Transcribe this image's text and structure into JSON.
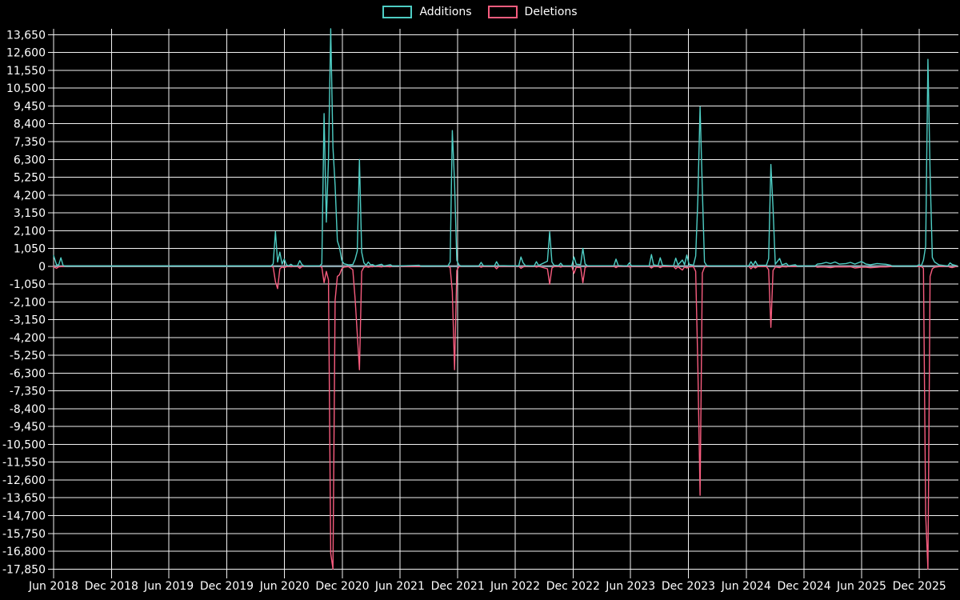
{
  "legend": {
    "items": [
      {
        "label": "Additions",
        "color": "#4ECDC4"
      },
      {
        "label": "Deletions",
        "color": "#F75C7E"
      }
    ]
  },
  "colors": {
    "background": "#000000",
    "gridline": "#F2F2F2",
    "axis_text": "#FFFFFF",
    "zero_baseline": "#8CA6B0",
    "additions": "#4ECDC4",
    "deletions": "#F75C7E"
  },
  "chart_data": {
    "type": "line",
    "title": "",
    "legend_position": "top-center",
    "grid": true,
    "x_domain": [
      "2018-06-01",
      "2026-04-01"
    ],
    "y_domain": [
      -17850,
      14000
    ],
    "y_tick_step": 1050,
    "y_ticks": {
      "values": [
        13650,
        12600,
        11550,
        10500,
        9450,
        8400,
        7350,
        6300,
        5250,
        4200,
        3150,
        2100,
        1050,
        0,
        -1050,
        -2100,
        -3150,
        -4200,
        -5250,
        -6300,
        -7350,
        -8400,
        -9450,
        -10500,
        -11550,
        -12600,
        -13650,
        -14700,
        -15750,
        -16800,
        -17850
      ],
      "labels": [
        "13,650",
        "12,600",
        "11,550",
        "10,500",
        "9,450",
        "8,400",
        "7,350",
        "6,300",
        "5,250",
        "4,200",
        "3,150",
        "2,100",
        "1,050",
        "0",
        "-1,050",
        "-2,100",
        "-3,150",
        "-4,200",
        "-5,250",
        "-6,300",
        "-7,350",
        "-8,400",
        "-9,450",
        "-10,500",
        "-11,550",
        "-12,600",
        "-13,650",
        "-14,700",
        "-15,750",
        "-16,800",
        "-17,850"
      ]
    },
    "x_ticks": [
      {
        "date": "2018-06-01",
        "label": "Jun 2018"
      },
      {
        "date": "2018-12-01",
        "label": "Dec 2018"
      },
      {
        "date": "2019-06-01",
        "label": "Jun 2019"
      },
      {
        "date": "2019-12-01",
        "label": "Dec 2019"
      },
      {
        "date": "2020-06-01",
        "label": "Jun 2020"
      },
      {
        "date": "2020-12-01",
        "label": "Dec 2020"
      },
      {
        "date": "2021-06-01",
        "label": "Jun 2021"
      },
      {
        "date": "2021-12-01",
        "label": "Dec 2021"
      },
      {
        "date": "2022-06-01",
        "label": "Jun 2022"
      },
      {
        "date": "2022-12-01",
        "label": "Dec 2022"
      },
      {
        "date": "2023-06-01",
        "label": "Jun 2023"
      },
      {
        "date": "2023-12-01",
        "label": "Dec 2023"
      },
      {
        "date": "2024-06-01",
        "label": "Jun 2024"
      },
      {
        "date": "2024-12-01",
        "label": "Dec 2024"
      },
      {
        "date": "2025-06-01",
        "label": "Jun 2025"
      },
      {
        "date": "2025-12-01",
        "label": "Dec 2025"
      }
    ],
    "x": [
      "2018-06-01",
      "2018-06-10",
      "2018-06-17",
      "2018-06-24",
      "2018-07-01",
      "2018-07-08",
      "2020-04-19",
      "2020-04-26",
      "2020-05-03",
      "2020-05-10",
      "2020-05-17",
      "2020-05-24",
      "2020-05-31",
      "2020-06-07",
      "2020-06-14",
      "2020-06-21",
      "2020-06-28",
      "2020-07-12",
      "2020-07-19",
      "2020-07-26",
      "2020-08-02",
      "2020-09-20",
      "2020-09-27",
      "2020-10-04",
      "2020-10-11",
      "2020-10-18",
      "2020-10-25",
      "2020-11-01",
      "2020-11-08",
      "2020-11-15",
      "2020-11-22",
      "2020-11-29",
      "2020-12-06",
      "2020-12-20",
      "2021-01-03",
      "2021-01-10",
      "2021-01-17",
      "2021-01-24",
      "2021-01-31",
      "2021-02-07",
      "2021-02-14",
      "2021-02-21",
      "2021-02-28",
      "2021-03-07",
      "2021-03-14",
      "2021-04-04",
      "2021-04-11",
      "2021-05-02",
      "2021-05-09",
      "2021-08-01",
      "2021-08-08",
      "2021-10-31",
      "2021-11-07",
      "2021-11-14",
      "2021-11-21",
      "2021-11-28",
      "2021-12-05",
      "2021-12-12",
      "2022-02-06",
      "2022-02-13",
      "2022-02-20",
      "2022-03-27",
      "2022-04-03",
      "2022-04-10",
      "2022-06-12",
      "2022-06-19",
      "2022-06-26",
      "2022-07-03",
      "2022-07-31",
      "2022-08-07",
      "2022-08-14",
      "2022-09-11",
      "2022-09-18",
      "2022-09-25",
      "2022-10-02",
      "2022-10-16",
      "2022-10-23",
      "2022-10-30",
      "2022-11-27",
      "2022-12-04",
      "2022-12-11",
      "2022-12-25",
      "2023-01-01",
      "2023-01-08",
      "2023-01-15",
      "2023-04-09",
      "2023-04-16",
      "2023-04-23",
      "2023-05-21",
      "2023-05-28",
      "2023-06-04",
      "2023-07-30",
      "2023-08-06",
      "2023-08-13",
      "2023-08-27",
      "2023-09-03",
      "2023-09-10",
      "2023-10-15",
      "2023-10-22",
      "2023-10-29",
      "2023-11-12",
      "2023-11-19",
      "2023-11-26",
      "2023-12-03",
      "2023-12-17",
      "2023-12-24",
      "2023-12-31",
      "2024-01-07",
      "2024-01-14",
      "2024-01-21",
      "2024-01-28",
      "2024-02-11",
      "2024-06-09",
      "2024-06-16",
      "2024-06-23",
      "2024-06-30",
      "2024-07-07",
      "2024-08-04",
      "2024-08-11",
      "2024-08-18",
      "2024-08-25",
      "2024-09-01",
      "2024-09-15",
      "2024-09-22",
      "2024-10-06",
      "2024-10-13",
      "2024-11-03",
      "2024-11-10",
      "2025-01-05",
      "2025-01-12",
      "2025-01-26",
      "2025-02-09",
      "2025-02-23",
      "2025-03-09",
      "2025-03-23",
      "2025-04-13",
      "2025-04-27",
      "2025-05-11",
      "2025-06-01",
      "2025-06-15",
      "2025-06-29",
      "2025-07-20",
      "2025-08-03",
      "2025-08-17",
      "2025-08-31",
      "2025-09-07",
      "2025-11-23",
      "2025-11-30",
      "2025-12-07",
      "2025-12-14",
      "2025-12-21",
      "2025-12-28",
      "2026-01-04",
      "2026-01-11",
      "2026-01-18",
      "2026-02-01",
      "2026-03-01",
      "2026-03-08",
      "2026-03-15",
      "2026-03-29"
    ],
    "series": [
      {
        "name": "Additions",
        "color": "#4ECDC4",
        "values": [
          630,
          100,
          60,
          500,
          60,
          10,
          10,
          150,
          2050,
          250,
          830,
          130,
          420,
          80,
          30,
          120,
          30,
          40,
          330,
          100,
          20,
          20,
          150,
          9000,
          2600,
          6300,
          14000,
          7000,
          4760,
          1500,
          1100,
          350,
          150,
          80,
          100,
          400,
          900,
          6300,
          830,
          200,
          60,
          250,
          80,
          100,
          20,
          120,
          20,
          90,
          10,
          60,
          10,
          20,
          250,
          8000,
          4900,
          350,
          80,
          10,
          20,
          230,
          30,
          20,
          270,
          40,
          20,
          550,
          200,
          40,
          20,
          270,
          50,
          300,
          2030,
          250,
          60,
          40,
          180,
          30,
          30,
          550,
          120,
          100,
          1060,
          150,
          30,
          30,
          420,
          50,
          20,
          200,
          30,
          30,
          690,
          80,
          40,
          500,
          60,
          30,
          480,
          80,
          370,
          90,
          660,
          120,
          60,
          600,
          3930,
          9400,
          4530,
          250,
          40,
          20,
          20,
          270,
          60,
          300,
          60,
          60,
          450,
          6000,
          3420,
          120,
          460,
          80,
          170,
          30,
          90,
          10,
          20,
          130,
          160,
          230,
          160,
          250,
          130,
          160,
          230,
          130,
          280,
          130,
          90,
          160,
          140,
          120,
          70,
          10,
          10,
          100,
          30,
          350,
          1200,
          12200,
          5550,
          520,
          250,
          80,
          20,
          200,
          100,
          40
        ]
      },
      {
        "name": "Deletions",
        "color": "#F75C7E",
        "values": [
          -30,
          -120,
          -30,
          -20,
          -10,
          0,
          0,
          -60,
          -910,
          -1320,
          -150,
          -40,
          -90,
          -20,
          0,
          -30,
          -10,
          0,
          -120,
          -20,
          0,
          0,
          -60,
          -970,
          -300,
          -800,
          -16930,
          -17850,
          -2000,
          -600,
          -500,
          -150,
          -50,
          -20,
          -200,
          -1850,
          -4000,
          -6100,
          -300,
          -60,
          -20,
          -60,
          -20,
          -30,
          0,
          -40,
          0,
          -30,
          0,
          -20,
          0,
          0,
          -80,
          -1500,
          -6100,
          -250,
          -20,
          0,
          0,
          -60,
          -10,
          -10,
          -150,
          -10,
          0,
          -120,
          -40,
          -10,
          0,
          -50,
          -10,
          -150,
          -1060,
          -100,
          -20,
          -10,
          -50,
          -10,
          -10,
          -420,
          -60,
          -80,
          -970,
          -80,
          -10,
          -10,
          -80,
          -10,
          0,
          -40,
          -10,
          -10,
          -100,
          -20,
          -10,
          -80,
          -20,
          -10,
          -150,
          -30,
          -220,
          -40,
          -100,
          -40,
          -20,
          -300,
          -5850,
          -13500,
          -400,
          -60,
          -10,
          0,
          0,
          -150,
          -20,
          -100,
          -20,
          -20,
          -200,
          -3600,
          -250,
          -40,
          -80,
          -20,
          -40,
          -10,
          -20,
          0,
          0,
          -60,
          -40,
          -50,
          -80,
          -40,
          -30,
          -40,
          -30,
          -100,
          -60,
          -60,
          -90,
          -60,
          -30,
          -40,
          -20,
          0,
          0,
          -30,
          -10,
          -120,
          -14630,
          -17850,
          -600,
          -150,
          -60,
          -20,
          0,
          -60,
          -80,
          -10
        ]
      }
    ]
  }
}
